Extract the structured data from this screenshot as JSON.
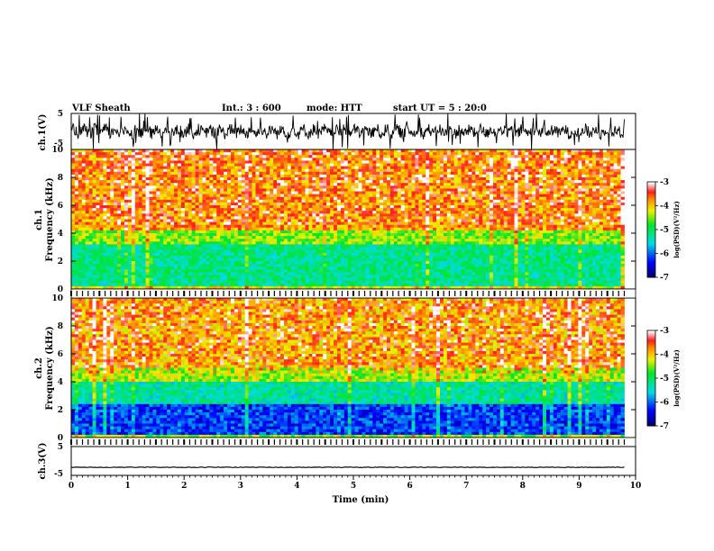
{
  "header": {
    "station": "VLF Sheath",
    "interval": "Int.: 3 : 600",
    "mode": "mode: HTT",
    "start": "start UT = 5 : 20:0"
  },
  "chart_data": [
    {
      "type": "line",
      "id": "ch1-waveform",
      "ylabel": "ch.1(V)",
      "ylim": [
        -5,
        5
      ],
      "yticks": [
        -5,
        5
      ],
      "xlim": [
        0,
        10
      ],
      "description_values": {
        "x_end": 9.8,
        "typical_range": [
          -5,
          5
        ]
      }
    },
    {
      "type": "heatmap",
      "id": "ch1-spectrogram",
      "ylabel": "ch.1\nFrequency (kHz)",
      "ylim": [
        0,
        10
      ],
      "yticks": [
        0,
        2,
        4,
        6,
        8,
        10
      ],
      "xlim": [
        0,
        10
      ],
      "x_end": 9.8,
      "colorbar": {
        "label": "log(PSD)(V²/Hz)",
        "min": -7,
        "max": -3,
        "ticks": [
          -7,
          -6,
          -5,
          -4,
          -3
        ]
      },
      "bands": [
        {
          "from_khz": 0,
          "to_khz": 0.3,
          "level": -4.2
        },
        {
          "from_khz": 0.3,
          "to_khz": 3.2,
          "level": -5.2
        },
        {
          "from_khz": 3.2,
          "to_khz": 4.2,
          "level": -4.5
        },
        {
          "from_khz": 4.2,
          "to_khz": 10,
          "level": -3.8
        }
      ]
    },
    {
      "type": "heatmap",
      "id": "ch2-spectrogram",
      "ylabel": "ch.2\nFrequency (kHz)",
      "ylim": [
        0,
        10
      ],
      "yticks": [
        0,
        2,
        4,
        6,
        8,
        10
      ],
      "xlim": [
        0,
        10
      ],
      "x_end": 9.8,
      "colorbar": {
        "label": "log(PSD)(V²/Hz)",
        "min": -7,
        "max": -3,
        "ticks": [
          -7,
          -6,
          -5,
          -4,
          -3
        ]
      },
      "bands": [
        {
          "from_khz": 0,
          "to_khz": 0.3,
          "level": -4.5
        },
        {
          "from_khz": 0.3,
          "to_khz": 2.5,
          "level": -6.2
        },
        {
          "from_khz": 2.5,
          "to_khz": 4.0,
          "level": -5.3
        },
        {
          "from_khz": 4.0,
          "to_khz": 5.0,
          "level": -4.4
        },
        {
          "from_khz": 5.0,
          "to_khz": 10,
          "level": -3.9
        }
      ]
    },
    {
      "type": "line",
      "id": "ch3-waveform",
      "ylabel": "ch.3(V)",
      "ylim": [
        -5,
        5
      ],
      "yticks": [
        -5,
        5
      ],
      "xlim": [
        0,
        10
      ],
      "x_end": 9.8,
      "constant_value": -2.5
    }
  ],
  "xaxis": {
    "label": "Time (min)",
    "ticks": [
      0,
      1,
      2,
      3,
      4,
      5,
      6,
      7,
      8,
      9,
      10
    ]
  }
}
